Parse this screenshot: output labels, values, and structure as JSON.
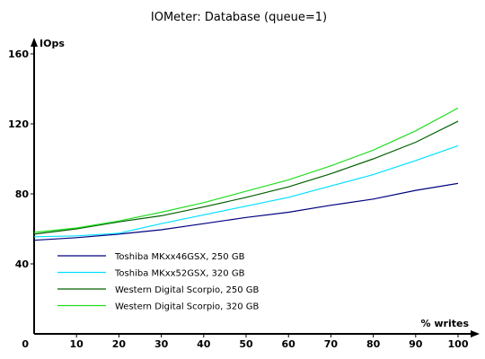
{
  "chart_data": {
    "type": "line",
    "title": "IOMeter: Database (queue=1)",
    "xlabel": "% writes",
    "ylabel": "IOps",
    "xlim": [
      0,
      100
    ],
    "ylim": [
      0,
      160
    ],
    "x_ticks": [
      0,
      10,
      20,
      30,
      40,
      50,
      60,
      70,
      80,
      90,
      100
    ],
    "y_ticks": [
      40,
      80,
      120,
      160
    ],
    "x": [
      0,
      10,
      20,
      30,
      40,
      50,
      60,
      70,
      80,
      90,
      100
    ],
    "legend_position": "bottom-left inside",
    "grid": false,
    "series": [
      {
        "name": "Toshiba MKxx46GSX, 250 GB",
        "color": "#000080",
        "values": [
          53.5,
          55,
          57,
          59.5,
          63,
          66.5,
          69.5,
          73.5,
          77,
          82,
          86
        ]
      },
      {
        "name": "Toshiba MKxx52GSX, 320 GB",
        "color": "#00e0ff",
        "values": [
          55.5,
          56,
          57.5,
          63,
          68,
          73,
          78,
          84.5,
          91,
          99,
          107.5
        ]
      },
      {
        "name": "Western Digital Scorpio, 250 GB",
        "color": "#006000",
        "values": [
          57,
          60,
          64,
          67.5,
          72.5,
          78,
          84,
          91.5,
          100,
          109.5,
          121.5
        ]
      },
      {
        "name": "Western Digital Scorpio, 320 GB",
        "color": "#22dd22",
        "values": [
          58,
          60.5,
          64.5,
          69.5,
          75,
          81.5,
          88,
          96,
          105,
          116,
          129
        ]
      }
    ]
  }
}
